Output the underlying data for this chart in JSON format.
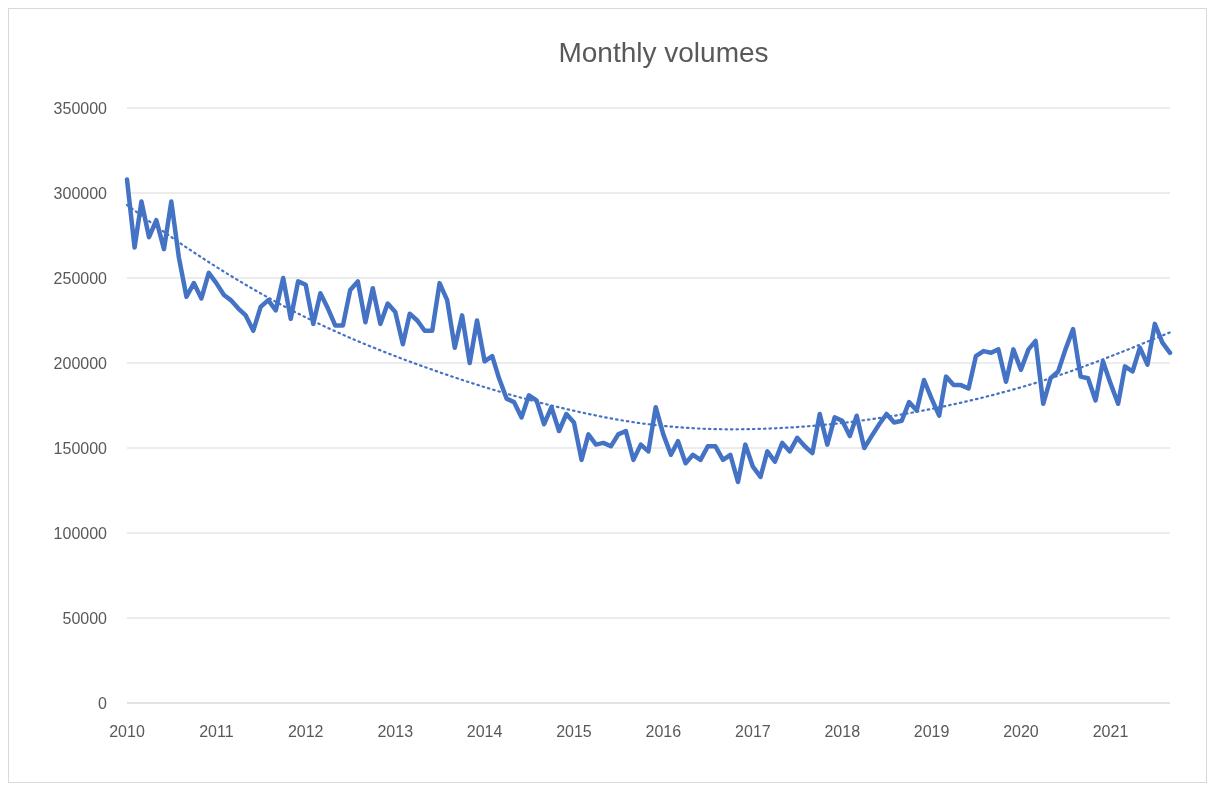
{
  "chart_data": {
    "type": "line",
    "title": "Monthly volumes",
    "x": [
      "2010-01",
      "2010-02",
      "2010-03",
      "2010-04",
      "2010-05",
      "2010-06",
      "2010-07",
      "2010-08",
      "2010-09",
      "2010-10",
      "2010-11",
      "2010-12",
      "2011-01",
      "2011-02",
      "2011-03",
      "2011-04",
      "2011-05",
      "2011-06",
      "2011-07",
      "2011-08",
      "2011-09",
      "2011-10",
      "2011-11",
      "2011-12",
      "2012-01",
      "2012-02",
      "2012-03",
      "2012-04",
      "2012-05",
      "2012-06",
      "2012-07",
      "2012-08",
      "2012-09",
      "2012-10",
      "2012-11",
      "2012-12",
      "2013-01",
      "2013-02",
      "2013-03",
      "2013-04",
      "2013-05",
      "2013-06",
      "2013-07",
      "2013-08",
      "2013-09",
      "2013-10",
      "2013-11",
      "2013-12",
      "2014-01",
      "2014-02",
      "2014-03",
      "2014-04",
      "2014-05",
      "2014-06",
      "2014-07",
      "2014-08",
      "2014-09",
      "2014-10",
      "2014-11",
      "2014-12",
      "2015-01",
      "2015-02",
      "2015-03",
      "2015-04",
      "2015-05",
      "2015-06",
      "2015-07",
      "2015-08",
      "2015-09",
      "2015-10",
      "2015-11",
      "2015-12",
      "2016-01",
      "2016-02",
      "2016-03",
      "2016-04",
      "2016-05",
      "2016-06",
      "2016-07",
      "2016-08",
      "2016-09",
      "2016-10",
      "2016-11",
      "2016-12",
      "2017-01",
      "2017-02",
      "2017-03",
      "2017-04",
      "2017-05",
      "2017-06",
      "2017-07",
      "2017-08",
      "2017-09",
      "2017-10",
      "2017-11",
      "2017-12",
      "2018-01",
      "2018-02",
      "2018-03",
      "2018-04",
      "2018-05",
      "2018-06",
      "2018-07",
      "2018-08",
      "2018-09",
      "2018-10",
      "2018-11",
      "2018-12",
      "2019-01",
      "2019-02",
      "2019-03",
      "2019-04",
      "2019-05",
      "2019-06",
      "2019-07",
      "2019-08",
      "2019-09",
      "2019-10",
      "2019-11",
      "2019-12",
      "2020-01",
      "2020-02",
      "2020-03",
      "2020-04",
      "2020-05",
      "2020-06",
      "2020-07",
      "2020-08",
      "2020-09",
      "2020-10",
      "2020-11",
      "2020-12",
      "2021-01",
      "2021-02",
      "2021-03",
      "2021-04",
      "2021-05",
      "2021-06",
      "2021-07",
      "2021-08",
      "2021-09"
    ],
    "series": [
      {
        "color": "#4472c4",
        "values": [
          308000,
          268000,
          295000,
          274000,
          284000,
          267000,
          295000,
          262000,
          239000,
          247000,
          238000,
          253000,
          247000,
          240000,
          237000,
          232000,
          228000,
          219000,
          233000,
          237000,
          231000,
          250000,
          226000,
          248000,
          246000,
          223000,
          241000,
          232000,
          222000,
          222000,
          243000,
          248000,
          224000,
          244000,
          223000,
          235000,
          230000,
          211000,
          229000,
          225000,
          219000,
          219000,
          247000,
          237000,
          209000,
          228000,
          200000,
          225000,
          201000,
          204000,
          191000,
          179000,
          177000,
          168000,
          181000,
          178000,
          164000,
          174000,
          160000,
          170000,
          165000,
          143000,
          158000,
          152000,
          153000,
          151000,
          158000,
          160000,
          143000,
          152000,
          148000,
          174000,
          158000,
          146000,
          154000,
          141000,
          146000,
          143000,
          151000,
          151000,
          143000,
          146000,
          130000,
          152000,
          139000,
          133000,
          148000,
          142000,
          153000,
          148000,
          156000,
          151000,
          147000,
          170000,
          152000,
          168000,
          166000,
          157000,
          169000,
          150000,
          157000,
          164000,
          170000,
          165000,
          166000,
          177000,
          172000,
          190000,
          179000,
          169000,
          192000,
          187000,
          187000,
          185000,
          204000,
          207000,
          206000,
          208000,
          189000,
          208000,
          196000,
          208000,
          213000,
          176000,
          191000,
          195000,
          208000,
          220000,
          192000,
          191000,
          178000,
          201000,
          188000,
          176000,
          198000,
          195000,
          209000,
          199000,
          223000,
          212000,
          206000
        ]
      },
      {
        "type": "line",
        "color": "#4472c4",
        "line_style": "dotted",
        "x": [
          "2010-01",
          "2010-08",
          "2011-09",
          "2013-08",
          "2014-10",
          "2015-11",
          "2016-10",
          "2017-09",
          "2019-01",
          "2020-02",
          "2021-09"
        ],
        "values": [
          293000,
          271000,
          236000,
          193000,
          175000,
          164000,
          161000,
          163000,
          173000,
          187000,
          218000
        ]
      }
    ],
    "xlim": [
      "2010-01",
      "2021-09"
    ],
    "xticks": [
      {
        "value": "2010-01",
        "label": "2010"
      },
      {
        "value": "2011-01",
        "label": "2011"
      },
      {
        "value": "2012-01",
        "label": "2012"
      },
      {
        "value": "2013-01",
        "label": "2013"
      },
      {
        "value": "2014-01",
        "label": "2014"
      },
      {
        "value": "2015-01",
        "label": "2015"
      },
      {
        "value": "2016-01",
        "label": "2016"
      },
      {
        "value": "2017-01",
        "label": "2017"
      },
      {
        "value": "2018-01",
        "label": "2018"
      },
      {
        "value": "2019-01",
        "label": "2019"
      },
      {
        "value": "2020-01",
        "label": "2020"
      },
      {
        "value": "2021-01",
        "label": "2021"
      }
    ],
    "ylim": [
      0,
      350000
    ],
    "yticks": [
      0,
      50000,
      100000,
      150000,
      200000,
      250000,
      300000,
      350000
    ],
    "grid": "y",
    "marker": "none",
    "line_style": "solid"
  }
}
